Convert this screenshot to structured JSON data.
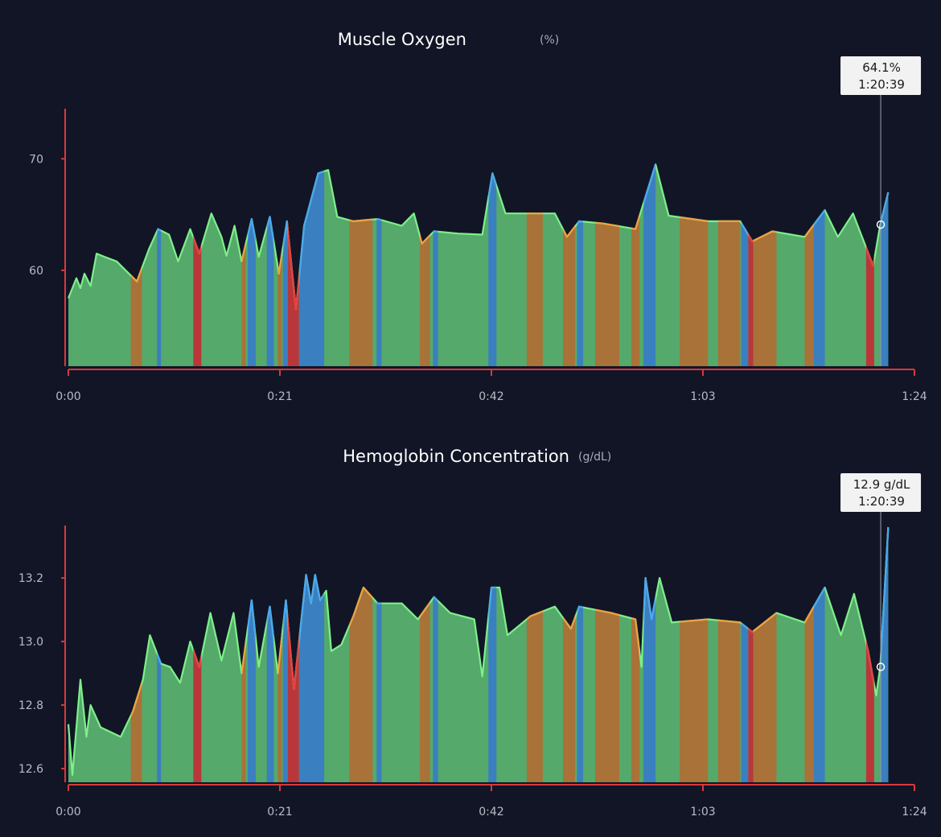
{
  "colors": {
    "background": "#111526",
    "axis": "#d8393a",
    "zones": {
      "green": {
        "fill": "#55a96b",
        "line": "#7ef08a"
      },
      "orange": {
        "fill": "#a87238",
        "line": "#f0a040"
      },
      "red": {
        "fill": "#b9373a",
        "line": "#e8403e"
      },
      "blue": {
        "fill": "#3a7fbf",
        "line": "#4aa8f0"
      }
    }
  },
  "chart_data": [
    {
      "type": "area",
      "title": "Muscle Oxygen",
      "unit": "(%)",
      "xlabel": "",
      "ylabel": "",
      "xlim": [
        0,
        84
      ],
      "ylim": [
        51.4,
        74.5
      ],
      "x_ticks": [
        {
          "v": 0,
          "label": "0:00"
        },
        {
          "v": 21,
          "label": "0:21"
        },
        {
          "v": 42,
          "label": "0:42"
        },
        {
          "v": 63,
          "label": "1:03"
        },
        {
          "v": 84,
          "label": "1:24"
        }
      ],
      "y_ticks": [
        {
          "v": 60,
          "label": "60"
        },
        {
          "v": 70,
          "label": "70"
        }
      ],
      "tooltip": {
        "x": 80.65,
        "y": 64.1,
        "value_label": "64.1%",
        "time_label": "1:20:39"
      },
      "x": [
        0,
        0.8,
        1.2,
        1.6,
        2.2,
        2.8,
        3.6,
        4.8,
        5.8,
        6.8,
        8.0,
        8.9,
        10.0,
        10.9,
        12.1,
        13.0,
        14.2,
        15.2,
        15.7,
        16.5,
        17.2,
        18.2,
        18.9,
        20.0,
        20.9,
        21.7,
        22.6,
        23.4,
        24.8,
        25.8,
        26.7,
        28.3,
        30.7,
        33.1,
        34.3,
        35.1,
        36.3,
        38.7,
        41.1,
        42.1,
        43.4,
        45.9,
        48.3,
        49.5,
        50.7,
        53.1,
        56.3,
        58.3,
        59.6,
        63.5,
        66.7,
        67.9,
        69.9,
        73.1,
        75.1,
        76.4,
        77.9,
        79.9,
        80.6,
        81.4
      ],
      "y": [
        57.5,
        59.3,
        58.4,
        59.7,
        58.6,
        61.5,
        61.2,
        60.8,
        59.9,
        59.0,
        61.9,
        63.7,
        63.2,
        60.8,
        63.7,
        61.5,
        65.1,
        63.0,
        61.3,
        64.0,
        60.8,
        64.6,
        61.2,
        64.8,
        59.7,
        64.4,
        56.5,
        64.0,
        68.7,
        69.0,
        64.8,
        64.4,
        64.6,
        64.0,
        65.1,
        62.4,
        63.5,
        63.3,
        63.2,
        68.7,
        65.1,
        65.1,
        65.1,
        63.0,
        64.4,
        64.2,
        63.7,
        69.5,
        64.9,
        64.4,
        64.4,
        62.6,
        63.5,
        63.0,
        65.4,
        63.0,
        65.1,
        60.4,
        64.1,
        67.0
      ]
    },
    {
      "type": "area",
      "title": "Hemoglobin Concentration",
      "unit": "(g/dL)",
      "xlabel": "",
      "ylabel": "",
      "xlim": [
        0,
        84
      ],
      "ylim": [
        12.557,
        13.365
      ],
      "x_ticks": [
        {
          "v": 0,
          "label": "0:00"
        },
        {
          "v": 21,
          "label": "0:21"
        },
        {
          "v": 42,
          "label": "0:42"
        },
        {
          "v": 63,
          "label": "1:03"
        },
        {
          "v": 84,
          "label": "1:24"
        }
      ],
      "y_ticks": [
        {
          "v": 12.6,
          "label": "12.6"
        },
        {
          "v": 12.8,
          "label": "12.8"
        },
        {
          "v": 13.0,
          "label": "13.0"
        },
        {
          "v": 13.2,
          "label": "13.2"
        }
      ],
      "tooltip": {
        "x": 80.65,
        "y": 12.92,
        "value_label": "12.9 g/dL",
        "time_label": "1:20:39"
      },
      "x": [
        0,
        0.4,
        1.2,
        1.8,
        2.2,
        3.2,
        5.2,
        6.4,
        7.4,
        8.1,
        9.2,
        10.1,
        11.1,
        12.1,
        13.0,
        14.1,
        15.2,
        16.4,
        17.2,
        18.2,
        18.9,
        20.0,
        20.8,
        21.6,
        22.4,
        23.6,
        24.1,
        24.5,
        25.0,
        25.6,
        26.1,
        27.1,
        28.3,
        29.3,
        30.7,
        33.1,
        34.7,
        36.3,
        37.9,
        40.3,
        41.1,
        42.0,
        42.8,
        43.6,
        45.9,
        48.3,
        49.9,
        50.7,
        53.9,
        56.3,
        56.9,
        57.3,
        57.9,
        58.7,
        59.9,
        63.5,
        66.7,
        67.9,
        70.3,
        73.1,
        75.1,
        76.7,
        78.0,
        79.4,
        80.2,
        80.6,
        81.4
      ],
      "y": [
        12.74,
        12.58,
        12.88,
        12.7,
        12.8,
        12.73,
        12.7,
        12.78,
        12.88,
        13.02,
        12.93,
        12.92,
        12.87,
        13.0,
        12.92,
        13.09,
        12.94,
        13.09,
        12.9,
        13.13,
        12.92,
        13.11,
        12.9,
        13.13,
        12.85,
        13.21,
        13.12,
        13.21,
        13.13,
        13.16,
        12.97,
        12.99,
        13.08,
        13.17,
        13.12,
        13.12,
        13.07,
        13.14,
        13.09,
        13.07,
        12.89,
        13.17,
        13.17,
        13.02,
        13.08,
        13.11,
        13.04,
        13.11,
        13.09,
        13.07,
        12.92,
        13.2,
        13.07,
        13.2,
        13.06,
        13.07,
        13.06,
        13.03,
        13.09,
        13.06,
        13.17,
        13.02,
        13.15,
        12.97,
        12.83,
        12.92,
        13.36
      ]
    }
  ],
  "zones": [
    [
      6.2,
      7.3,
      "orange"
    ],
    [
      8.8,
      9.2,
      "blue"
    ],
    [
      12.4,
      13.2,
      "red"
    ],
    [
      17.2,
      17.6,
      "orange"
    ],
    [
      17.8,
      18.6,
      "blue"
    ],
    [
      19.7,
      20.4,
      "blue"
    ],
    [
      20.8,
      21.2,
      "orange"
    ],
    [
      21.3,
      21.8,
      "blue"
    ],
    [
      21.8,
      22.9,
      "red"
    ],
    [
      22.9,
      25.4,
      "blue"
    ],
    [
      27.9,
      30.2,
      "orange"
    ],
    [
      30.6,
      31.1,
      "blue"
    ],
    [
      34.9,
      35.9,
      "orange"
    ],
    [
      36.2,
      36.7,
      "blue"
    ],
    [
      41.7,
      42.5,
      "blue"
    ],
    [
      45.5,
      47.1,
      "orange"
    ],
    [
      49.1,
      50.3,
      "orange"
    ],
    [
      50.5,
      51.1,
      "blue"
    ],
    [
      52.3,
      54.7,
      "orange"
    ],
    [
      55.9,
      56.7,
      "orange"
    ],
    [
      57.1,
      58.3,
      "blue"
    ],
    [
      60.7,
      63.5,
      "orange"
    ],
    [
      64.5,
      66.7,
      "orange"
    ],
    [
      66.8,
      67.5,
      "blue"
    ],
    [
      67.5,
      68.0,
      "red"
    ],
    [
      68.0,
      70.3,
      "orange"
    ],
    [
      73.1,
      74.0,
      "orange"
    ],
    [
      74.0,
      75.1,
      "blue"
    ],
    [
      79.2,
      80.0,
      "red"
    ],
    [
      80.6,
      81.6,
      "blue"
    ]
  ]
}
